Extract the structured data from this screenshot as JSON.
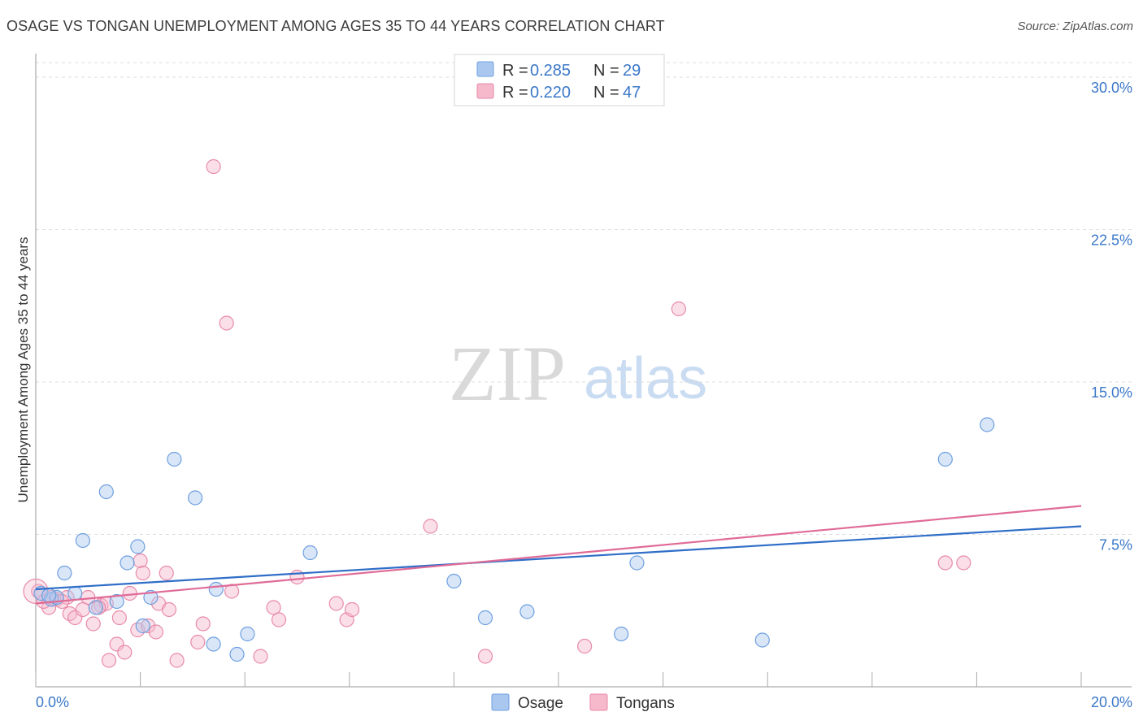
{
  "header": {
    "title": "OSAGE VS TONGAN UNEMPLOYMENT AMONG AGES 35 TO 44 YEARS CORRELATION CHART",
    "source": "Source: ZipAtlas.com"
  },
  "watermark": {
    "zip": "ZIP",
    "atlas": "atlas"
  },
  "legend": {
    "rows": [
      {
        "r_label": "R = ",
        "r_value": "0.285",
        "n_label": "N = ",
        "n_value": "29"
      },
      {
        "r_label": "R = ",
        "r_value": "0.220",
        "n_label": "N = ",
        "n_value": "47"
      }
    ]
  },
  "colors": {
    "osage_fill": "#aac8ef",
    "osage_stroke": "#6d9fe0",
    "osage_line": "#2f6ec8",
    "tongans_fill": "#f6b8cb",
    "tongans_stroke": "#e88aa8",
    "tongans_line": "#e06b97",
    "grid": "#dddddd",
    "tick_text": "#3b78c8"
  },
  "chart_data": {
    "type": "scatter",
    "title": "OSAGE VS TONGAN UNEMPLOYMENT AMONG AGES 35 TO 44 YEARS CORRELATION CHART",
    "xlabel": "",
    "ylabel": "Unemployment Among Ages 35 to 44 years",
    "xlim": [
      0,
      20
    ],
    "ylim": [
      0,
      30
    ],
    "x_tick_labels": [
      "0.0%",
      "20.0%"
    ],
    "y_ticks": [
      7.5,
      15.0,
      22.5,
      30.0
    ],
    "y_tick_labels": [
      "7.5%",
      "15.0%",
      "22.5%",
      "30.0%"
    ],
    "grid": "horizontal dashed",
    "legend_position": "top-center",
    "series": [
      {
        "name": "Osage",
        "r": 0.285,
        "n": 29,
        "trend": {
          "x0": 0,
          "y0": 4.8,
          "x1": 20,
          "y1": 7.9
        },
        "points": [
          [
            0.1,
            4.6
          ],
          [
            0.3,
            4.3
          ],
          [
            0.4,
            4.4
          ],
          [
            0.55,
            5.6
          ],
          [
            0.75,
            4.6
          ],
          [
            0.9,
            7.2
          ],
          [
            1.15,
            3.9
          ],
          [
            1.35,
            9.6
          ],
          [
            1.55,
            4.2
          ],
          [
            1.75,
            6.1
          ],
          [
            1.95,
            6.9
          ],
          [
            2.05,
            3.0
          ],
          [
            2.2,
            4.4
          ],
          [
            2.65,
            11.2
          ],
          [
            3.05,
            9.3
          ],
          [
            3.4,
            2.1
          ],
          [
            3.45,
            4.8
          ],
          [
            4.05,
            2.6
          ],
          [
            3.85,
            1.6
          ],
          [
            5.25,
            6.6
          ],
          [
            8.0,
            5.2
          ],
          [
            8.6,
            3.4
          ],
          [
            9.4,
            3.7
          ],
          [
            11.2,
            2.6
          ],
          [
            11.5,
            6.1
          ],
          [
            13.9,
            2.3
          ],
          [
            17.4,
            11.2
          ],
          [
            18.2,
            12.9
          ],
          [
            0.25,
            4.5
          ]
        ]
      },
      {
        "name": "Tongans",
        "r": 0.22,
        "n": 47,
        "trend": {
          "x0": 0,
          "y0": 4.1,
          "x1": 20,
          "y1": 8.9
        },
        "points": [
          [
            0.05,
            4.7
          ],
          [
            0.25,
            3.9
          ],
          [
            0.4,
            4.3
          ],
          [
            0.6,
            4.4
          ],
          [
            0.65,
            3.6
          ],
          [
            0.75,
            3.4
          ],
          [
            0.9,
            3.8
          ],
          [
            1.0,
            4.4
          ],
          [
            1.1,
            3.1
          ],
          [
            1.25,
            4.0
          ],
          [
            1.35,
            4.1
          ],
          [
            1.4,
            1.3
          ],
          [
            1.55,
            2.1
          ],
          [
            1.6,
            3.4
          ],
          [
            1.7,
            1.7
          ],
          [
            1.8,
            4.6
          ],
          [
            1.95,
            2.8
          ],
          [
            2.0,
            6.2
          ],
          [
            2.05,
            5.6
          ],
          [
            2.15,
            3.0
          ],
          [
            2.3,
            2.7
          ],
          [
            2.35,
            4.1
          ],
          [
            2.5,
            5.6
          ],
          [
            2.55,
            3.8
          ],
          [
            2.7,
            1.3
          ],
          [
            3.1,
            2.2
          ],
          [
            3.2,
            3.1
          ],
          [
            3.4,
            25.6
          ],
          [
            3.65,
            17.9
          ],
          [
            3.75,
            4.7
          ],
          [
            4.3,
            1.5
          ],
          [
            4.55,
            3.9
          ],
          [
            4.65,
            3.3
          ],
          [
            5.0,
            5.4
          ],
          [
            5.75,
            4.1
          ],
          [
            5.95,
            3.3
          ],
          [
            6.05,
            3.8
          ],
          [
            7.55,
            7.9
          ],
          [
            8.6,
            1.5
          ],
          [
            10.5,
            2.0
          ],
          [
            12.3,
            18.6
          ],
          [
            17.4,
            6.1
          ],
          [
            17.75,
            6.1
          ],
          [
            0.15,
            4.2
          ],
          [
            0.5,
            4.2
          ],
          [
            1.2,
            3.9
          ],
          [
            0.3,
            4.4
          ]
        ]
      }
    ]
  },
  "bottom_legend": {
    "items": [
      "Osage",
      "Tongans"
    ]
  }
}
